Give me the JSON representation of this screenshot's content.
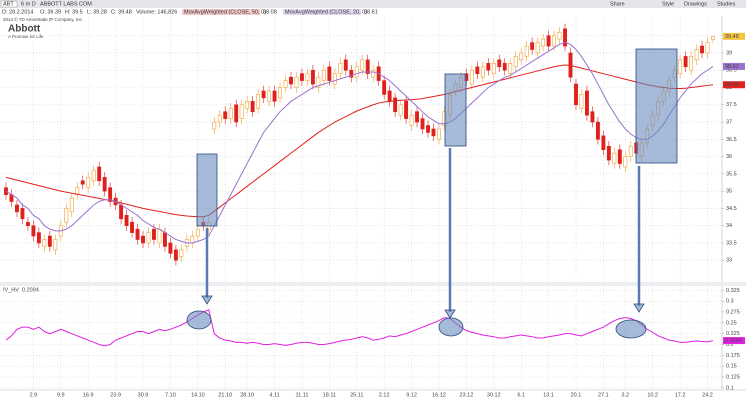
{
  "toolbar": {
    "symbol": "ABT",
    "period": "6 m D",
    "company": "ABBOTT LABS COM",
    "buttons": [
      "Share",
      "Style",
      "Drawings",
      "Studies"
    ]
  },
  "header": {
    "date": "D: 28.2.2014",
    "open": "O: 39.39",
    "high": "H: 39.5",
    "low": "L: 39.28",
    "close": "C: 39.48",
    "volume": "Volume: 146,826"
  },
  "watermark": {
    "copyright": "2014 © TD Ameritrade IP Company, Inc.",
    "logo": "Abbott",
    "tagline": "A Promise for Life"
  },
  "chart_data": [
    {
      "type": "candlestick",
      "up_color": "#f0a030",
      "down_color": "#e0201c",
      "last_label": "39.48",
      "grid": true,
      "ylim": [
        32.37,
        40.07
      ],
      "yticks": [
        33,
        33.5,
        34,
        34.5,
        35,
        35.5,
        36,
        36.5,
        37,
        37.5,
        38,
        38.5,
        39,
        39.5
      ],
      "open": [
        35.1,
        34.9,
        34.6,
        34.5,
        34.1,
        34.0,
        33.8,
        33.4,
        33.7,
        33.3,
        33.7,
        34.1,
        34.4,
        34.9,
        35.3,
        35.1,
        35.3,
        35.7,
        35.4,
        35.1,
        34.8,
        34.6,
        34.3,
        34.1,
        33.9,
        33.7,
        33.5,
        33.9,
        33.5,
        33.8,
        33.5,
        33.3,
        33.1,
        33.4,
        33.5,
        33.7,
        34.1,
        33.9,
        36.8,
        37.0,
        37.3,
        37.1,
        37.5,
        37.1,
        37.4,
        37.6,
        37.4,
        37.9,
        37.6,
        37.9,
        37.7,
        38.0,
        38.3,
        38.0,
        38.4,
        38.2,
        38.5,
        38.0,
        38.2,
        38.6,
        38.1,
        38.4,
        38.8,
        38.5,
        38.3,
        38.5,
        38.8,
        38.3,
        38.6,
        38.2,
        37.9,
        37.7,
        37.2,
        37.6,
        36.9,
        37.3,
        37.1,
        36.9,
        36.8,
        36.5,
        36.9,
        37.2,
        37.9,
        38.0,
        38.4,
        38.1,
        38.6,
        38.3,
        38.7,
        38.4,
        38.8,
        38.7,
        38.4,
        38.6,
        38.8,
        38.9,
        39.3,
        39.0,
        39.2,
        39.5,
        39.2,
        39.4,
        39.7,
        39.0,
        38.1,
        37.4,
        37.9,
        37.3,
        37.0,
        36.6,
        36.3,
        35.8,
        36.2,
        35.7,
        36.0,
        36.4,
        36.0,
        36.4,
        36.9,
        37.2,
        37.6,
        37.9,
        38.3,
        38.4,
        38.9,
        38.5,
        38.8,
        39.2,
        39.0,
        39.39
      ],
      "high": [
        35.25,
        35.05,
        34.75,
        34.65,
        34.25,
        34.15,
        33.95,
        33.75,
        33.85,
        33.75,
        34.15,
        34.65,
        34.95,
        35.25,
        35.45,
        35.55,
        35.75,
        35.85,
        35.55,
        35.25,
        34.95,
        34.75,
        34.45,
        34.25,
        34.05,
        33.85,
        33.95,
        34.05,
        34.05,
        33.95,
        33.65,
        33.45,
        33.45,
        33.75,
        33.85,
        34.05,
        34.25,
        34.25,
        37.15,
        37.35,
        37.45,
        37.55,
        37.65,
        37.65,
        37.75,
        37.75,
        37.95,
        38.05,
        38.05,
        38.05,
        38.15,
        38.35,
        38.45,
        38.45,
        38.55,
        38.55,
        38.65,
        38.45,
        38.65,
        38.75,
        38.55,
        38.85,
        38.95,
        38.65,
        38.75,
        38.95,
        38.95,
        38.65,
        38.75,
        38.35,
        38.05,
        37.85,
        37.65,
        37.75,
        37.35,
        37.45,
        37.25,
        37.05,
        36.95,
        36.95,
        37.45,
        37.95,
        38.25,
        38.45,
        38.55,
        38.65,
        38.75,
        38.75,
        38.85,
        38.85,
        38.95,
        38.85,
        38.85,
        39.05,
        39.15,
        39.35,
        39.45,
        39.45,
        39.55,
        39.65,
        39.65,
        39.75,
        39.85,
        39.15,
        38.25,
        37.95,
        38.05,
        37.45,
        37.15,
        36.75,
        36.45,
        36.25,
        36.35,
        36.15,
        36.45,
        36.55,
        36.55,
        36.95,
        37.35,
        37.75,
        38.05,
        38.35,
        38.65,
        38.95,
        39.05,
        39.05,
        39.25,
        39.35,
        39.45,
        39.5
      ],
      "low": [
        34.75,
        34.55,
        34.25,
        34.05,
        33.85,
        33.55,
        33.35,
        33.25,
        33.25,
        33.15,
        33.55,
        33.95,
        34.25,
        34.75,
        35.05,
        34.95,
        35.15,
        35.15,
        34.85,
        34.55,
        34.45,
        34.05,
        33.85,
        33.65,
        33.45,
        33.35,
        33.35,
        33.45,
        33.35,
        33.25,
        33.05,
        32.85,
        32.95,
        33.25,
        33.35,
        33.55,
        33.85,
        33.75,
        36.65,
        36.85,
        36.95,
        36.95,
        36.85,
        36.95,
        37.25,
        37.15,
        37.25,
        37.55,
        37.45,
        37.45,
        37.55,
        37.85,
        37.95,
        37.85,
        38.05,
        38.05,
        37.95,
        37.85,
        38.05,
        38.05,
        37.95,
        38.25,
        38.35,
        38.15,
        38.15,
        38.35,
        38.25,
        38.15,
        38.05,
        37.65,
        37.45,
        37.15,
        37.05,
        36.95,
        36.75,
        36.85,
        36.65,
        36.55,
        36.45,
        36.35,
        36.75,
        37.05,
        37.75,
        37.85,
        38.05,
        37.95,
        38.25,
        38.15,
        38.35,
        38.25,
        38.45,
        38.35,
        38.25,
        38.45,
        38.65,
        38.75,
        38.95,
        38.85,
        39.05,
        39.05,
        39.05,
        39.25,
        39.05,
        38.15,
        37.35,
        37.25,
        37.05,
        36.85,
        36.35,
        36.05,
        35.75,
        35.65,
        35.65,
        35.55,
        35.85,
        35.95,
        35.85,
        36.25,
        36.75,
        37.05,
        37.45,
        37.75,
        38.15,
        38.25,
        38.45,
        38.35,
        38.65,
        38.85,
        38.85,
        39.28
      ],
      "close": [
        34.9,
        34.7,
        34.4,
        34.2,
        34.0,
        33.7,
        33.5,
        33.6,
        33.4,
        33.6,
        34.0,
        34.5,
        34.8,
        35.1,
        35.2,
        35.4,
        35.6,
        35.3,
        35.0,
        34.7,
        34.6,
        34.2,
        34.0,
        33.8,
        33.6,
        33.5,
        33.8,
        33.6,
        33.9,
        33.4,
        33.2,
        33.0,
        33.3,
        33.6,
        33.7,
        33.9,
        34.0,
        34.1,
        37.0,
        37.2,
        37.1,
        37.4,
        37.0,
        37.5,
        37.6,
        37.3,
        37.8,
        37.7,
        37.9,
        37.6,
        38.0,
        38.2,
        38.1,
        38.3,
        38.2,
        38.4,
        38.1,
        38.3,
        38.5,
        38.2,
        38.4,
        38.7,
        38.5,
        38.3,
        38.6,
        38.8,
        38.4,
        38.5,
        38.2,
        37.8,
        37.6,
        37.3,
        37.5,
        37.1,
        37.2,
        37.0,
        36.8,
        36.7,
        36.6,
        36.8,
        37.3,
        37.8,
        38.1,
        38.3,
        38.2,
        38.5,
        38.4,
        38.6,
        38.5,
        38.7,
        38.6,
        38.5,
        38.7,
        38.9,
        39.0,
        39.2,
        39.1,
        39.3,
        39.4,
        39.2,
        39.5,
        39.6,
        39.2,
        38.3,
        37.5,
        37.8,
        37.2,
        37.0,
        36.5,
        36.2,
        35.9,
        36.1,
        35.8,
        36.0,
        36.3,
        36.1,
        36.4,
        36.8,
        37.2,
        37.6,
        37.9,
        38.2,
        38.5,
        38.8,
        38.6,
        38.9,
        39.1,
        39.0,
        39.3,
        39.48
      ],
      "series": [
        {
          "name": "MovAvgWeighted (CLOSE, 50, 0)",
          "color": "#e0201c",
          "last_label": "38.08",
          "values": [
            35.4,
            35.36,
            35.32,
            35.28,
            35.24,
            35.2,
            35.16,
            35.12,
            35.08,
            35.04,
            35.0,
            34.97,
            34.94,
            34.91,
            34.88,
            34.85,
            34.82,
            34.79,
            34.76,
            34.73,
            34.7,
            34.66,
            34.62,
            34.58,
            34.54,
            34.5,
            34.47,
            34.44,
            34.41,
            34.38,
            34.35,
            34.32,
            34.3,
            34.28,
            34.27,
            34.26,
            34.26,
            34.3,
            34.42,
            34.54,
            34.66,
            34.78,
            34.9,
            35.02,
            35.14,
            35.26,
            35.38,
            35.5,
            35.62,
            35.74,
            35.86,
            35.98,
            36.1,
            36.22,
            36.34,
            36.46,
            36.58,
            36.7,
            36.8,
            36.9,
            37.0,
            37.08,
            37.16,
            37.24,
            37.32,
            37.38,
            37.44,
            37.5,
            37.55,
            37.58,
            37.6,
            37.62,
            37.63,
            37.64,
            37.65,
            37.66,
            37.68,
            37.71,
            37.74,
            37.77,
            37.8,
            37.84,
            37.88,
            37.92,
            37.96,
            38.0,
            38.04,
            38.08,
            38.12,
            38.16,
            38.2,
            38.24,
            38.28,
            38.32,
            38.36,
            38.4,
            38.44,
            38.48,
            38.52,
            38.56,
            38.6,
            38.63,
            38.65,
            38.64,
            38.6,
            38.56,
            38.52,
            38.48,
            38.44,
            38.4,
            38.36,
            38.32,
            38.28,
            38.24,
            38.2,
            38.16,
            38.12,
            38.08,
            38.05,
            38.02,
            38.0,
            37.98,
            37.97,
            37.97,
            37.98,
            38.0,
            38.02,
            38.04,
            38.06,
            38.08
          ]
        },
        {
          "name": "MovAvgWeighted (CLOSE, 20, 0)",
          "color": "#9a72d0",
          "last_label": "38.61",
          "values": [
            35.0,
            34.9,
            34.8,
            34.6,
            34.5,
            34.3,
            34.2,
            34.0,
            33.9,
            33.85,
            33.85,
            33.9,
            34.0,
            34.15,
            34.3,
            34.45,
            34.6,
            34.7,
            34.75,
            34.75,
            34.7,
            34.6,
            34.5,
            34.4,
            34.3,
            34.15,
            34.05,
            33.95,
            33.9,
            33.8,
            33.7,
            33.6,
            33.55,
            33.5,
            33.5,
            33.55,
            33.6,
            33.7,
            34.0,
            34.3,
            34.6,
            34.9,
            35.2,
            35.5,
            35.8,
            36.1,
            36.4,
            36.7,
            36.9,
            37.1,
            37.3,
            37.45,
            37.6,
            37.7,
            37.8,
            37.9,
            38.0,
            38.05,
            38.1,
            38.15,
            38.2,
            38.25,
            38.3,
            38.35,
            38.4,
            38.45,
            38.45,
            38.45,
            38.4,
            38.3,
            38.2,
            38.05,
            37.9,
            37.75,
            37.6,
            37.45,
            37.3,
            37.15,
            37.05,
            36.95,
            36.95,
            37.0,
            37.1,
            37.25,
            37.4,
            37.55,
            37.7,
            37.85,
            38.0,
            38.1,
            38.2,
            38.3,
            38.35,
            38.45,
            38.55,
            38.65,
            38.75,
            38.85,
            38.95,
            39.05,
            39.15,
            39.25,
            39.3,
            39.25,
            39.1,
            38.9,
            38.65,
            38.4,
            38.1,
            37.8,
            37.5,
            37.25,
            37.0,
            36.8,
            36.65,
            36.55,
            36.5,
            36.5,
            36.6,
            36.75,
            36.95,
            37.2,
            37.45,
            37.7,
            37.9,
            38.1,
            38.25,
            38.4,
            38.5,
            38.61
          ]
        }
      ]
    },
    {
      "type": "line",
      "title": "IV_HV",
      "last_label": "0.2094",
      "color": "#e020e0",
      "grid": true,
      "ylim": [
        0.095,
        0.335
      ],
      "yticks": [
        0.1,
        0.125,
        0.15,
        0.175,
        0.2,
        0.225,
        0.25,
        0.275,
        0.3,
        0.325
      ],
      "categories": [
        null,
        null,
        null,
        null,
        null,
        "2.9",
        null,
        null,
        null,
        null,
        "9.9",
        null,
        null,
        null,
        null,
        "16.9",
        null,
        null,
        null,
        null,
        "23.9",
        null,
        null,
        null,
        null,
        "30.9",
        null,
        null,
        null,
        null,
        "7.10",
        null,
        null,
        null,
        null,
        "14.10",
        null,
        null,
        null,
        null,
        "21.10",
        null,
        null,
        null,
        "28.10",
        null,
        null,
        null,
        null,
        "4.11",
        null,
        null,
        null,
        null,
        "11.11",
        null,
        null,
        null,
        null,
        "18.11",
        null,
        null,
        null,
        null,
        "25.11",
        null,
        null,
        null,
        null,
        "2.12",
        null,
        null,
        null,
        null,
        "9.12",
        null,
        null,
        null,
        null,
        "16.12",
        null,
        null,
        null,
        null,
        "23.12",
        null,
        null,
        null,
        null,
        "30.12",
        null,
        null,
        null,
        null,
        "6.1",
        null,
        null,
        null,
        null,
        "13.1",
        null,
        null,
        null,
        null,
        "20.1",
        null,
        null,
        null,
        null,
        "27.1",
        null,
        null,
        null,
        "3.2",
        null,
        null,
        null,
        null,
        "10.2",
        null,
        null,
        null,
        null,
        "17.2",
        null,
        null,
        null,
        null,
        "24.2",
        null
      ],
      "values": [
        0.21,
        0.22,
        0.235,
        0.24,
        0.24,
        0.235,
        0.24,
        0.23,
        0.225,
        0.23,
        0.235,
        0.23,
        0.225,
        0.22,
        0.215,
        0.21,
        0.205,
        0.2,
        0.197,
        0.2,
        0.21,
        0.215,
        0.22,
        0.225,
        0.23,
        0.23,
        0.225,
        0.23,
        0.235,
        0.232,
        0.235,
        0.24,
        0.245,
        0.252,
        0.26,
        0.268,
        0.275,
        0.28,
        0.225,
        0.215,
        0.21,
        0.208,
        0.205,
        0.205,
        0.203,
        0.205,
        0.203,
        0.2,
        0.2,
        0.202,
        0.2,
        0.198,
        0.2,
        0.203,
        0.205,
        0.205,
        0.203,
        0.2,
        0.2,
        0.202,
        0.205,
        0.208,
        0.21,
        0.212,
        0.215,
        0.218,
        0.215,
        0.21,
        0.212,
        0.215,
        0.22,
        0.218,
        0.222,
        0.225,
        0.23,
        0.235,
        0.24,
        0.245,
        0.25,
        0.255,
        0.262,
        0.26,
        0.25,
        0.24,
        0.232,
        0.228,
        0.225,
        0.222,
        0.22,
        0.218,
        0.215,
        0.215,
        0.218,
        0.22,
        0.222,
        0.22,
        0.218,
        0.215,
        0.215,
        0.218,
        0.22,
        0.222,
        0.225,
        0.225,
        0.222,
        0.22,
        0.225,
        0.23,
        0.235,
        0.24,
        0.248,
        0.255,
        0.26,
        0.262,
        0.26,
        0.255,
        0.245,
        0.235,
        0.228,
        0.22,
        0.215,
        0.21,
        0.208,
        0.205,
        0.205,
        0.207,
        0.208,
        0.207,
        0.206,
        0.209
      ]
    }
  ]
}
